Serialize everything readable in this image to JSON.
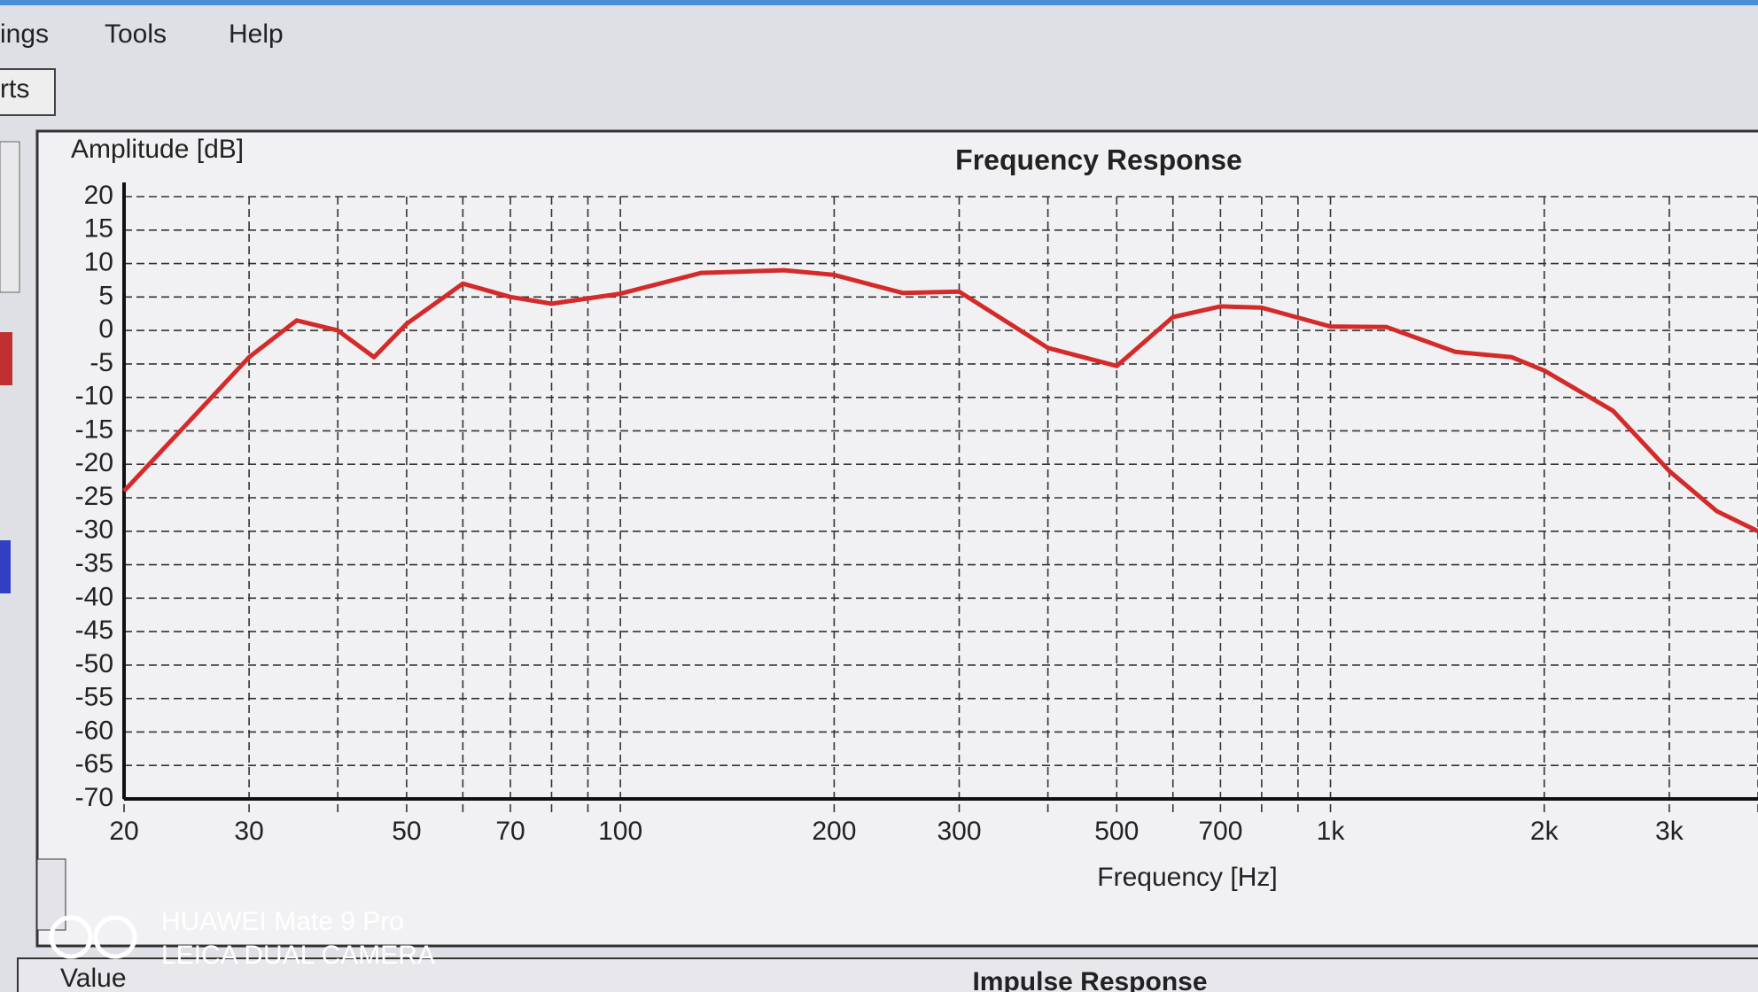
{
  "menu": [
    "ings",
    "Tools",
    "Help"
  ],
  "tab": "rts",
  "bottom_panel": {
    "column": "Value",
    "title": "Impulse Response"
  },
  "watermark": [
    "HUAWEI Mate 9 Pro",
    "LEICA DUAL CAMERA"
  ],
  "chart_data": {
    "type": "line",
    "title": "Frequency Response",
    "y_label": "Amplitude [dB]",
    "x_label": "Frequency [Hz]",
    "x": [
      20,
      25,
      30,
      35,
      40,
      45,
      50,
      60,
      70,
      80,
      100,
      130,
      170,
      200,
      250,
      300,
      400,
      500,
      600,
      700,
      800,
      1000,
      1200,
      1500,
      1800,
      2000,
      2500,
      3000,
      3500,
      4000
    ],
    "values": [
      -24,
      -13,
      -4,
      1.5,
      0,
      -4,
      1,
      7,
      5,
      4,
      5.5,
      8.6,
      9,
      8.3,
      5.6,
      5.8,
      -2.6,
      -5.3,
      2,
      3.6,
      3.4,
      0.6,
      0.5,
      -3.2,
      -4,
      -6,
      -12,
      -21,
      -27,
      -30
    ],
    "color": "#d42a2a",
    "xscale": "log",
    "xlim": [
      20,
      4000
    ],
    "xticks": [
      20,
      30,
      50,
      70,
      100,
      200,
      300,
      500,
      700,
      {
        "value": 1000,
        "label": "1k"
      },
      {
        "value": 2000,
        "label": "2k"
      },
      {
        "value": 3000,
        "label": "3k"
      }
    ],
    "xminor": [
      40,
      60,
      80,
      90,
      400,
      600,
      800,
      900,
      4000
    ],
    "ylim": [
      -70,
      20
    ],
    "yticks": [
      -70,
      -65,
      -60,
      -55,
      -50,
      -45,
      -40,
      -35,
      -30,
      -25,
      -20,
      -15,
      -10,
      -5,
      0,
      5,
      10,
      15,
      20
    ],
    "grid": true
  }
}
